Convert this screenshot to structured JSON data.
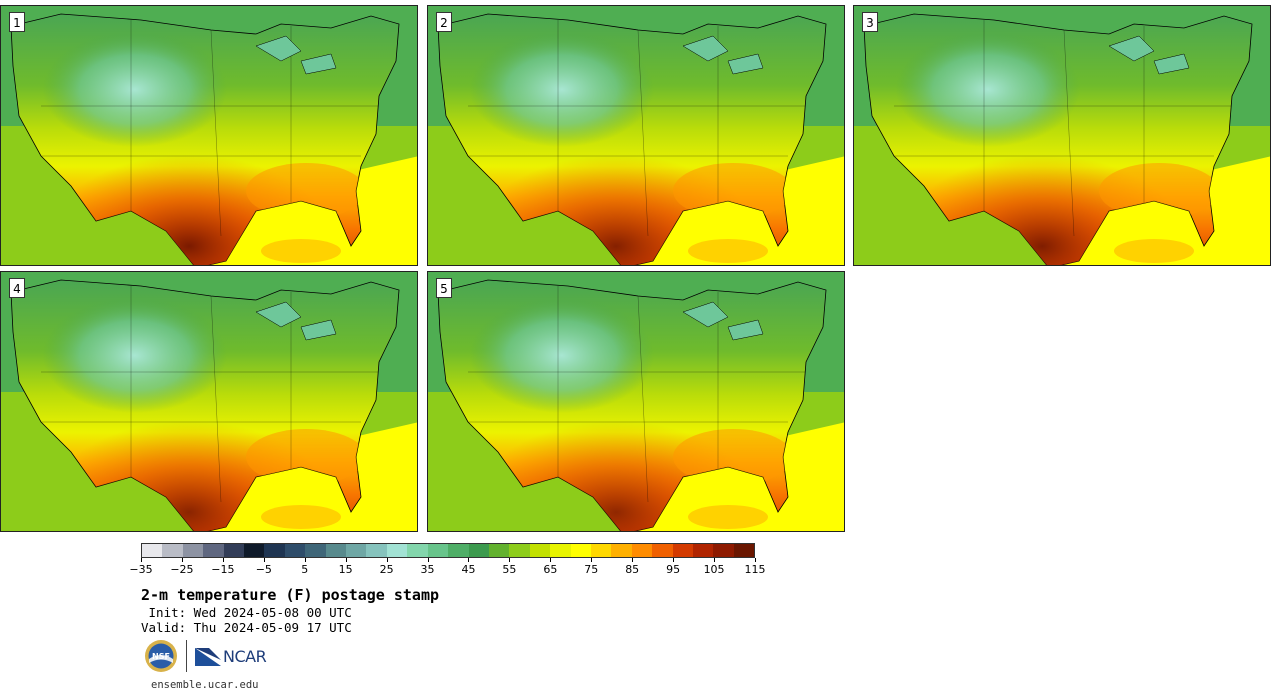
{
  "panels": [
    {
      "label": "1",
      "hot_intensity": 1.0
    },
    {
      "label": "2",
      "hot_intensity": 0.9
    },
    {
      "label": "3",
      "hot_intensity": 0.95
    },
    {
      "label": "4",
      "hot_intensity": 0.85
    },
    {
      "label": "5",
      "hot_intensity": 0.8
    }
  ],
  "colorbar": {
    "colors": [
      "#e8e8ec",
      "#b9bcc6",
      "#8d93a3",
      "#5f6780",
      "#323d58",
      "#0f1a2a",
      "#1f3552",
      "#2f4d6a",
      "#3f6678",
      "#588a8d",
      "#6fa7a5",
      "#86c3bd",
      "#a2e2d4",
      "#83d6ac",
      "#68c48b",
      "#4fae67",
      "#3c9a4e",
      "#62b12e",
      "#8dcc1a",
      "#c2e000",
      "#e8f400",
      "#ffff00",
      "#ffd800",
      "#ffb000",
      "#ff8c00",
      "#f06000",
      "#d33a00",
      "#b02400",
      "#8e1a00",
      "#6a1600"
    ],
    "ticks": [
      "−35",
      "−25",
      "−15",
      "−5",
      "5",
      "15",
      "25",
      "35",
      "45",
      "55",
      "65",
      "75",
      "85",
      "95",
      "105",
      "115"
    ]
  },
  "title": "2-m temperature (F) postage stamp",
  "init_line": " Init: Wed 2024-05-08 00 UTC",
  "valid_line": "Valid: Thu 2024-05-09 17 UTC",
  "logos": {
    "nsf": "NSF",
    "ncar": "NCAR"
  },
  "footer": "ensemble.ucar.edu"
}
